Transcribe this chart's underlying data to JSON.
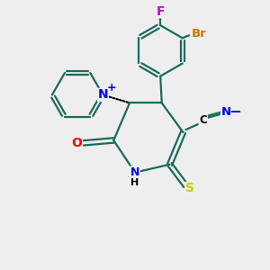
{
  "bg_color": "#eeeeee",
  "atom_colors": {
    "C": "#1a6b5a",
    "N": "#0000ff",
    "O": "#ff0000",
    "S": "#cccc00",
    "F": "#cc00cc",
    "Br": "#cc7700",
    "H": "#000000",
    "bond": "#1a6b5a"
  },
  "title": ""
}
